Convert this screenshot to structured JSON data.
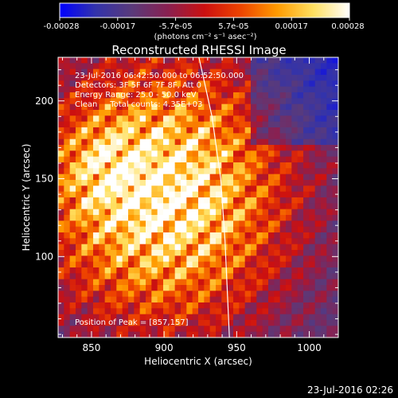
{
  "colorbar": {
    "ticks": [
      "-0.00028",
      "-0.00017",
      "-5.7e-05",
      "5.7e-05",
      "0.00017",
      "0.00028"
    ],
    "unit_label": "(photons cm⁻² s⁻¹ asec⁻²)"
  },
  "chart_data": {
    "type": "heatmap",
    "title": "Reconstructed RHESSI Image",
    "xlabel": "Heliocentric X (arcsec)",
    "ylabel": "Heliocentric Y (arcsec)",
    "xlim": [
      827,
      1020
    ],
    "ylim": [
      48,
      228
    ],
    "xticks": [
      850,
      900,
      950,
      1000
    ],
    "yticks": [
      100,
      150,
      200
    ],
    "x_tick_labels": [
      "850",
      "900",
      "950",
      "1000"
    ],
    "y_tick_labels": [
      "100",
      "150",
      "200"
    ],
    "value_range": [
      -0.00028,
      0.00028
    ],
    "colormap": [
      "#0000ff",
      "#3333aa",
      "#5a3a7a",
      "#8a2050",
      "#cc1010",
      "#ee4400",
      "#ff9a00",
      "#ffe060",
      "#ffffff"
    ],
    "peak_position": [
      857,
      157
    ],
    "limb_curve_points": [
      [
        924,
        228
      ],
      [
        933,
        190
      ],
      [
        939,
        150
      ],
      [
        942,
        110
      ],
      [
        945,
        48
      ]
    ],
    "annotations": [
      "23-Jul-2016 06:42:50.000 to 06:52:50.000",
      "Detectors: 3F 5F 6F 7F 8F, Att 0",
      "Energy Range: 25.0 - 50.0 keV",
      "Clean     Total counts: 4.35E+03"
    ],
    "peak_label": "Position of Peak = [857,157]"
  },
  "footer_timestamp": "23-Jul-2016 02:26"
}
